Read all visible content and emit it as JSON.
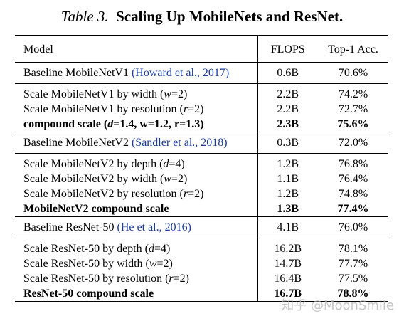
{
  "caption": {
    "label": "Table 3.",
    "title": "Scaling Up MobileNets and ResNet."
  },
  "columns": {
    "model": "Model",
    "flops": "FLOPS",
    "acc": "Top-1 Acc."
  },
  "groups": [
    {
      "baseline": {
        "text": "Baseline MobileNetV1 ",
        "cite": "(Howard et al., 2017)",
        "flops": "0.6B",
        "acc": "70.6%"
      },
      "rows": [
        {
          "pre": "Scale MobileNetV1 by width (",
          "math": "w",
          "post": "=2)",
          "flops": "2.2B",
          "acc": "74.2%"
        },
        {
          "pre": "Scale MobileNetV1 by resolution (",
          "math": "r",
          "post": "=2)",
          "flops": "2.2B",
          "acc": "72.7%"
        },
        {
          "pre": "compound scale (",
          "math": "d",
          "post": "=1.4, w=1.2, r=1.3)",
          "flops": "2.3B",
          "acc": "75.6%",
          "bold": true
        }
      ]
    },
    {
      "baseline": {
        "text": "Baseline MobileNetV2 ",
        "cite": "(Sandler et al., 2018)",
        "flops": "0.3B",
        "acc": "72.0%"
      },
      "rows": [
        {
          "pre": "Scale MobileNetV2 by depth (",
          "math": "d",
          "post": "=4)",
          "flops": "1.2B",
          "acc": "76.8%"
        },
        {
          "pre": "Scale MobileNetV2 by width (",
          "math": "w",
          "post": "=2)",
          "flops": "1.1B",
          "acc": "76.4%"
        },
        {
          "pre": "Scale MobileNetV2 by resolution (",
          "math": "r",
          "post": "=2)",
          "flops": "1.2B",
          "acc": "74.8%"
        },
        {
          "pre": "MobileNetV2 compound scale",
          "math": "",
          "post": "",
          "flops": "1.3B",
          "acc": "77.4%",
          "bold": true
        }
      ]
    },
    {
      "baseline": {
        "text": "Baseline ResNet-50 ",
        "cite": "(He et al., 2016)",
        "flops": "4.1B",
        "acc": "76.0%"
      },
      "rows": [
        {
          "pre": "Scale ResNet-50 by depth (",
          "math": "d",
          "post": "=4)",
          "flops": "16.2B",
          "acc": "78.1%"
        },
        {
          "pre": "Scale ResNet-50 by width (",
          "math": "w",
          "post": "=2)",
          "flops": "14.7B",
          "acc": "77.7%"
        },
        {
          "pre": "Scale ResNet-50 by resolution (",
          "math": "r",
          "post": "=2)",
          "flops": "16.4B",
          "acc": "77.5%"
        },
        {
          "pre": "ResNet-50 compound scale",
          "math": "",
          "post": "",
          "flops": "16.7B",
          "acc": "78.8%",
          "bold": true
        }
      ]
    }
  ],
  "watermark": "知乎 @MoonSmile"
}
